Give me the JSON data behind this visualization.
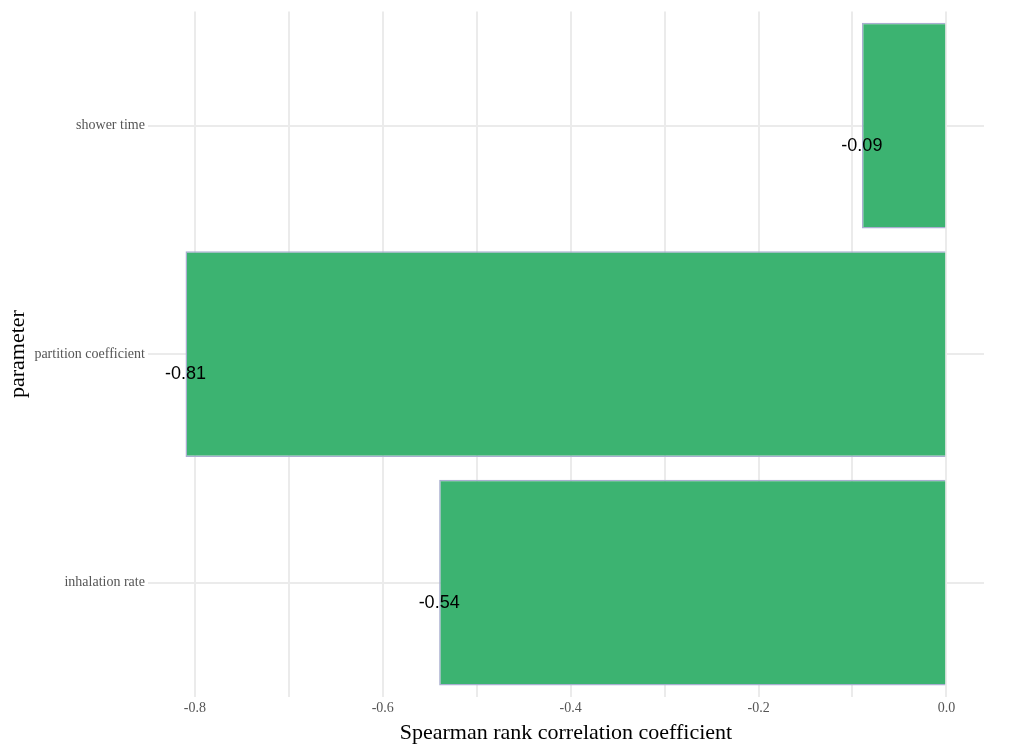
{
  "chart_data": {
    "type": "bar",
    "orientation": "horizontal",
    "xlabel": "Spearman rank correlation coefficient",
    "ylabel": "parameter",
    "categories": [
      "shower time",
      "partition coefficient",
      "inhalation rate"
    ],
    "values": [
      -0.09,
      -0.81,
      -0.54
    ],
    "color": "#3cb371",
    "data_labels": true,
    "xlim": [
      -0.85,
      0.04
    ],
    "xticks": [
      {
        "value": -0.8,
        "label": "-0.8"
      },
      {
        "value": -0.7,
        "label": null
      },
      {
        "value": -0.6,
        "label": "-0.6"
      },
      {
        "value": -0.5,
        "label": null
      },
      {
        "value": -0.4,
        "label": "-0.4"
      },
      {
        "value": -0.3,
        "label": null
      },
      {
        "value": -0.2,
        "label": "-0.2"
      },
      {
        "value": -0.1,
        "label": null
      },
      {
        "value": 0,
        "label": "0.0"
      }
    ],
    "grid": true,
    "legend": false
  }
}
